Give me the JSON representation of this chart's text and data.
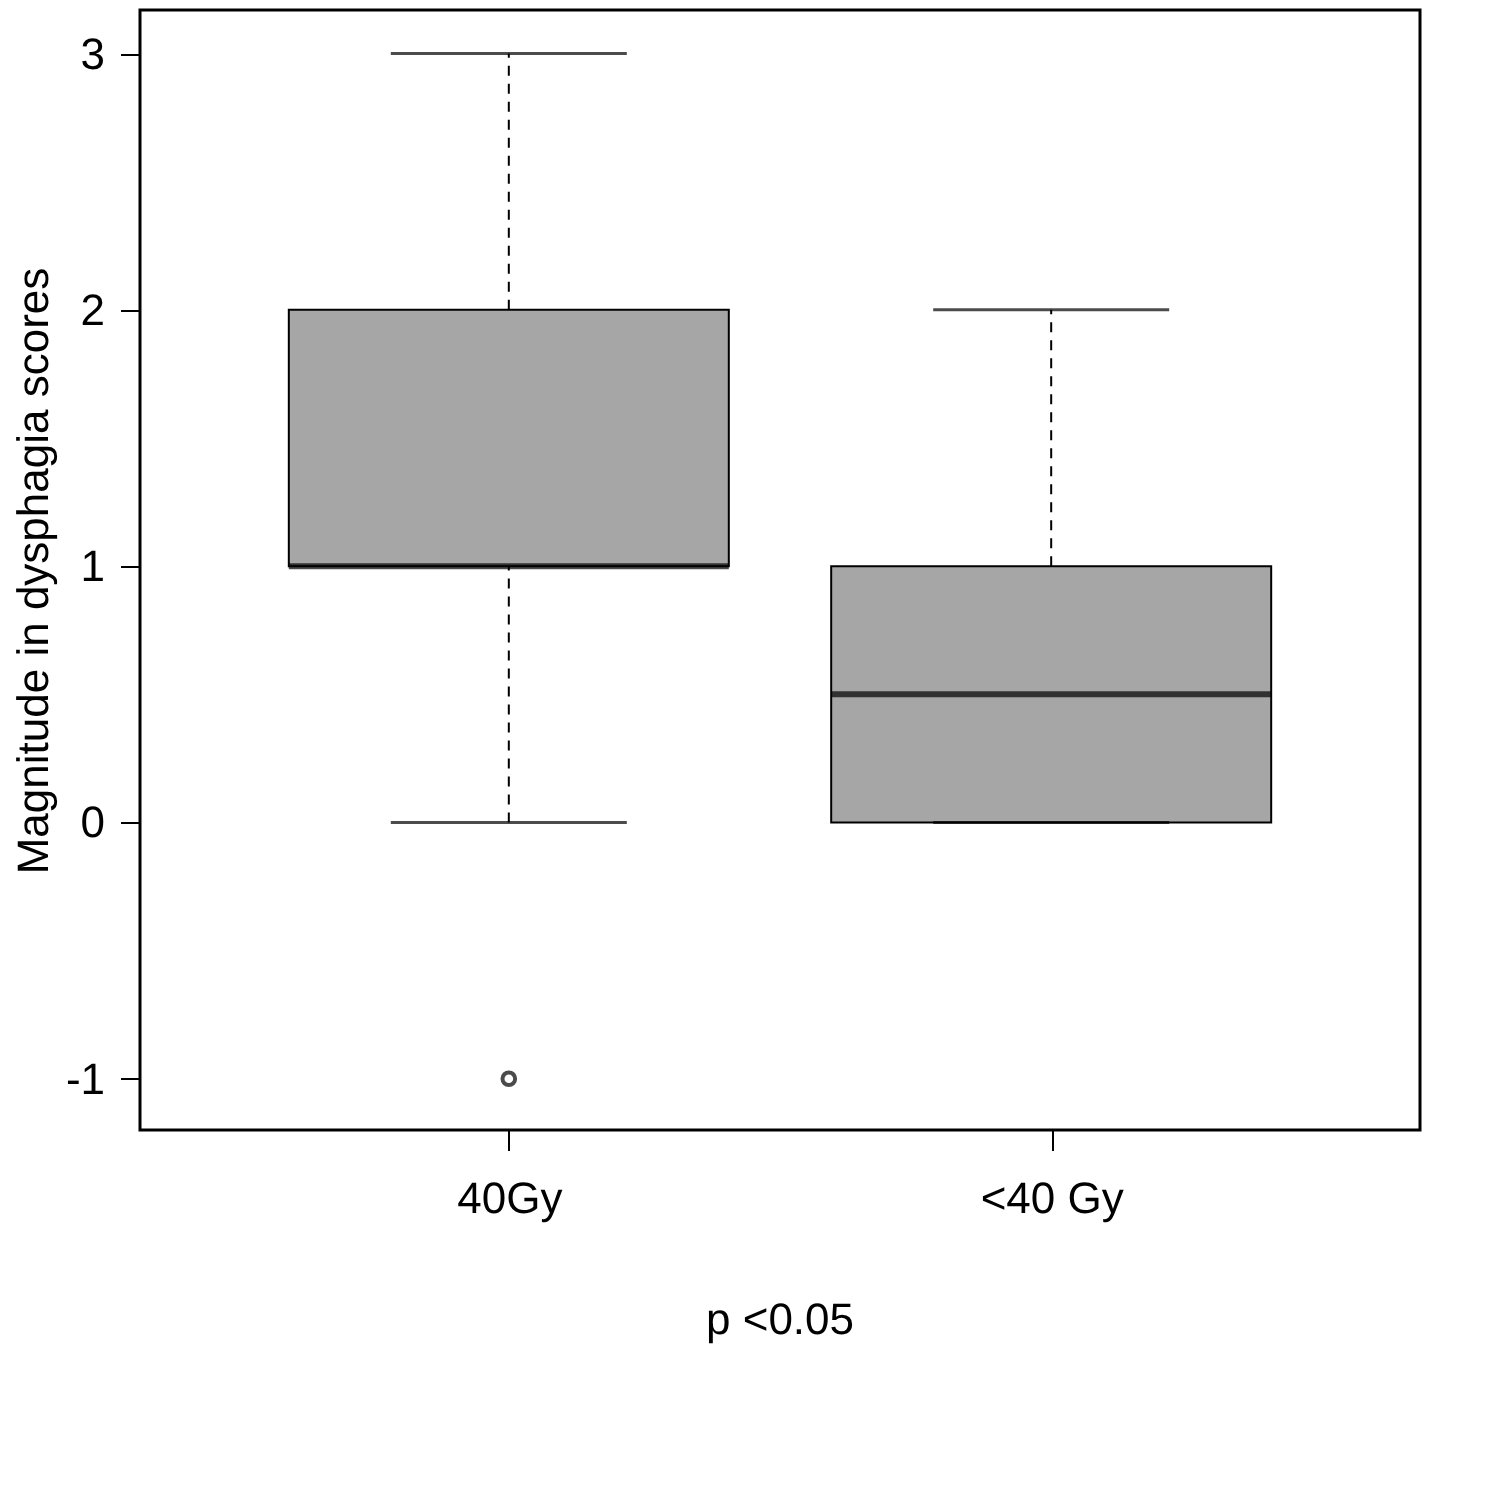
{
  "chart_data": {
    "type": "box",
    "ylabel": "Magnitude in dysphagia scores",
    "categories": [
      "40Gy",
      "<40 Gy"
    ],
    "boxes": [
      {
        "low": 0,
        "q1": 1,
        "median": 1,
        "q3": 2,
        "high": 3,
        "outliers": [
          -1
        ]
      },
      {
        "low": 0,
        "q1": 0,
        "median": 0.5,
        "q3": 1,
        "high": 2
      }
    ],
    "color": "#a6a6a6",
    "ylim": [
      -1.2,
      3.17
    ],
    "yticks": [
      -1,
      0,
      1,
      2,
      3
    ],
    "grid": false,
    "annotations": [
      "p <0.05"
    ]
  }
}
